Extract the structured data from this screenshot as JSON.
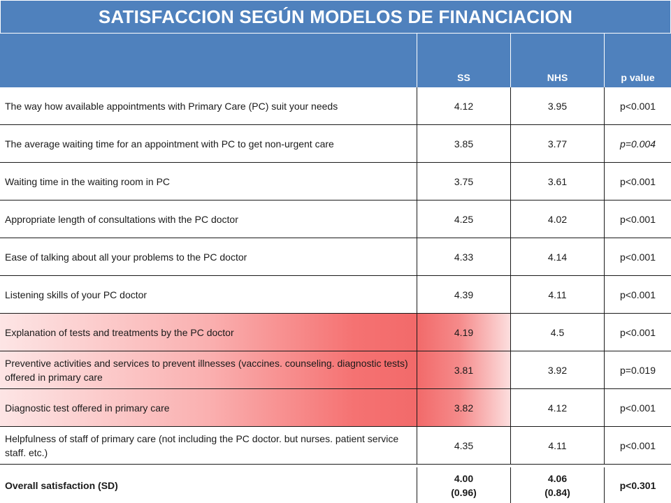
{
  "title": "SATISFACCION SEGÚN MODELOS DE FINANCIACION",
  "columns": {
    "label": "",
    "ss": "SS",
    "nhs": "NHS",
    "p": "p value"
  },
  "colors": {
    "header_bg": "#4f81bd",
    "header_text": "#ffffff",
    "highlight": "#f26a6a"
  },
  "rows": [
    {
      "label": "The way how available appointments with Primary Care (PC) suit your needs",
      "ss": "4.12",
      "nhs": "3.95",
      "p": "p<0.001",
      "highlight": false
    },
    {
      "label": "The average waiting time for an appointment with PC to get non-urgent care",
      "ss": "3.85",
      "nhs": "3.77",
      "p": "p=0.004",
      "highlight": false
    },
    {
      "label": "Waiting time in the waiting room in PC",
      "ss": "3.75",
      "nhs": "3.61",
      "p": "p<0.001",
      "highlight": false
    },
    {
      "label": "Appropriate length of consultations with the PC doctor",
      "ss": "4.25",
      "nhs": "4.02",
      "p": "p<0.001",
      "highlight": false
    },
    {
      "label": "Ease of talking about all your problems to the PC doctor",
      "ss": "4.33",
      "nhs": "4.14",
      "p": "p<0.001",
      "highlight": false
    },
    {
      "label": "Listening skills of your PC doctor",
      "ss": "4.39",
      "nhs": "4.11",
      "p": "p<0.001",
      "highlight": false
    },
    {
      "label": "Explanation of tests and treatments by the PC doctor",
      "ss": "4.19",
      "nhs": "4.5",
      "p": "p<0.001",
      "highlight": true
    },
    {
      "label": "Preventive activities and services to prevent illnesses (vaccines. counseling. diagnostic tests) offered in primary care",
      "ss": "3.81",
      "nhs": "3.92",
      "p": "p=0.019",
      "highlight": true
    },
    {
      "label": "Diagnostic test offered in primary care",
      "ss": "3.82",
      "nhs": "4.12",
      "p": "p<0.001",
      "highlight": true
    },
    {
      "label": "Helpfulness of staff of primary care (not including the PC doctor. but nurses. patient service staff. etc.)",
      "ss": "4.35",
      "nhs": "4.11",
      "p": "p<0.001",
      "highlight": false
    }
  ],
  "overall": {
    "label": "Overall satisfaction (SD)",
    "ss_mean": "4.00",
    "ss_sd": "(0.96)",
    "nhs_mean": "4.06",
    "nhs_sd": "(0.84)",
    "p": "p<0.301"
  }
}
